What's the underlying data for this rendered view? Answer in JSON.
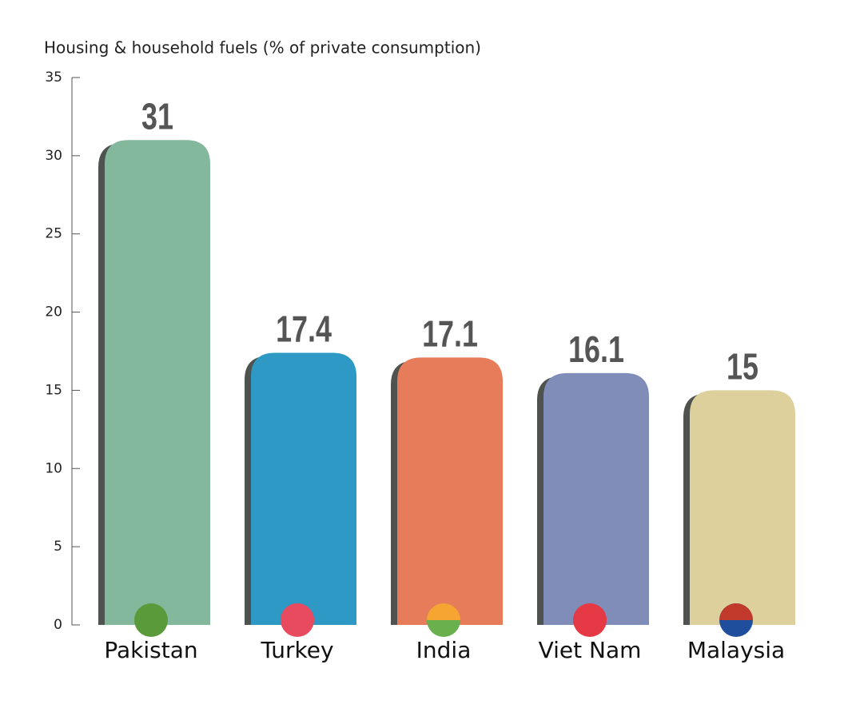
{
  "chart_data": {
    "type": "bar",
    "y_label": "Housing & household fuels (% of private consumption)",
    "categories": [
      "Pakistan",
      "Turkey",
      "India",
      "Viet Nam",
      "Malaysia"
    ],
    "values": [
      31,
      17.4,
      17.1,
      16.1,
      15
    ],
    "colors": [
      "#84b89c",
      "#2e99c4",
      "#e67c59",
      "#7f8db8",
      "#ddd09c"
    ],
    "ylim": [
      0,
      35
    ],
    "yticks": [
      0,
      5,
      10,
      15,
      20,
      25,
      30,
      35
    ]
  }
}
